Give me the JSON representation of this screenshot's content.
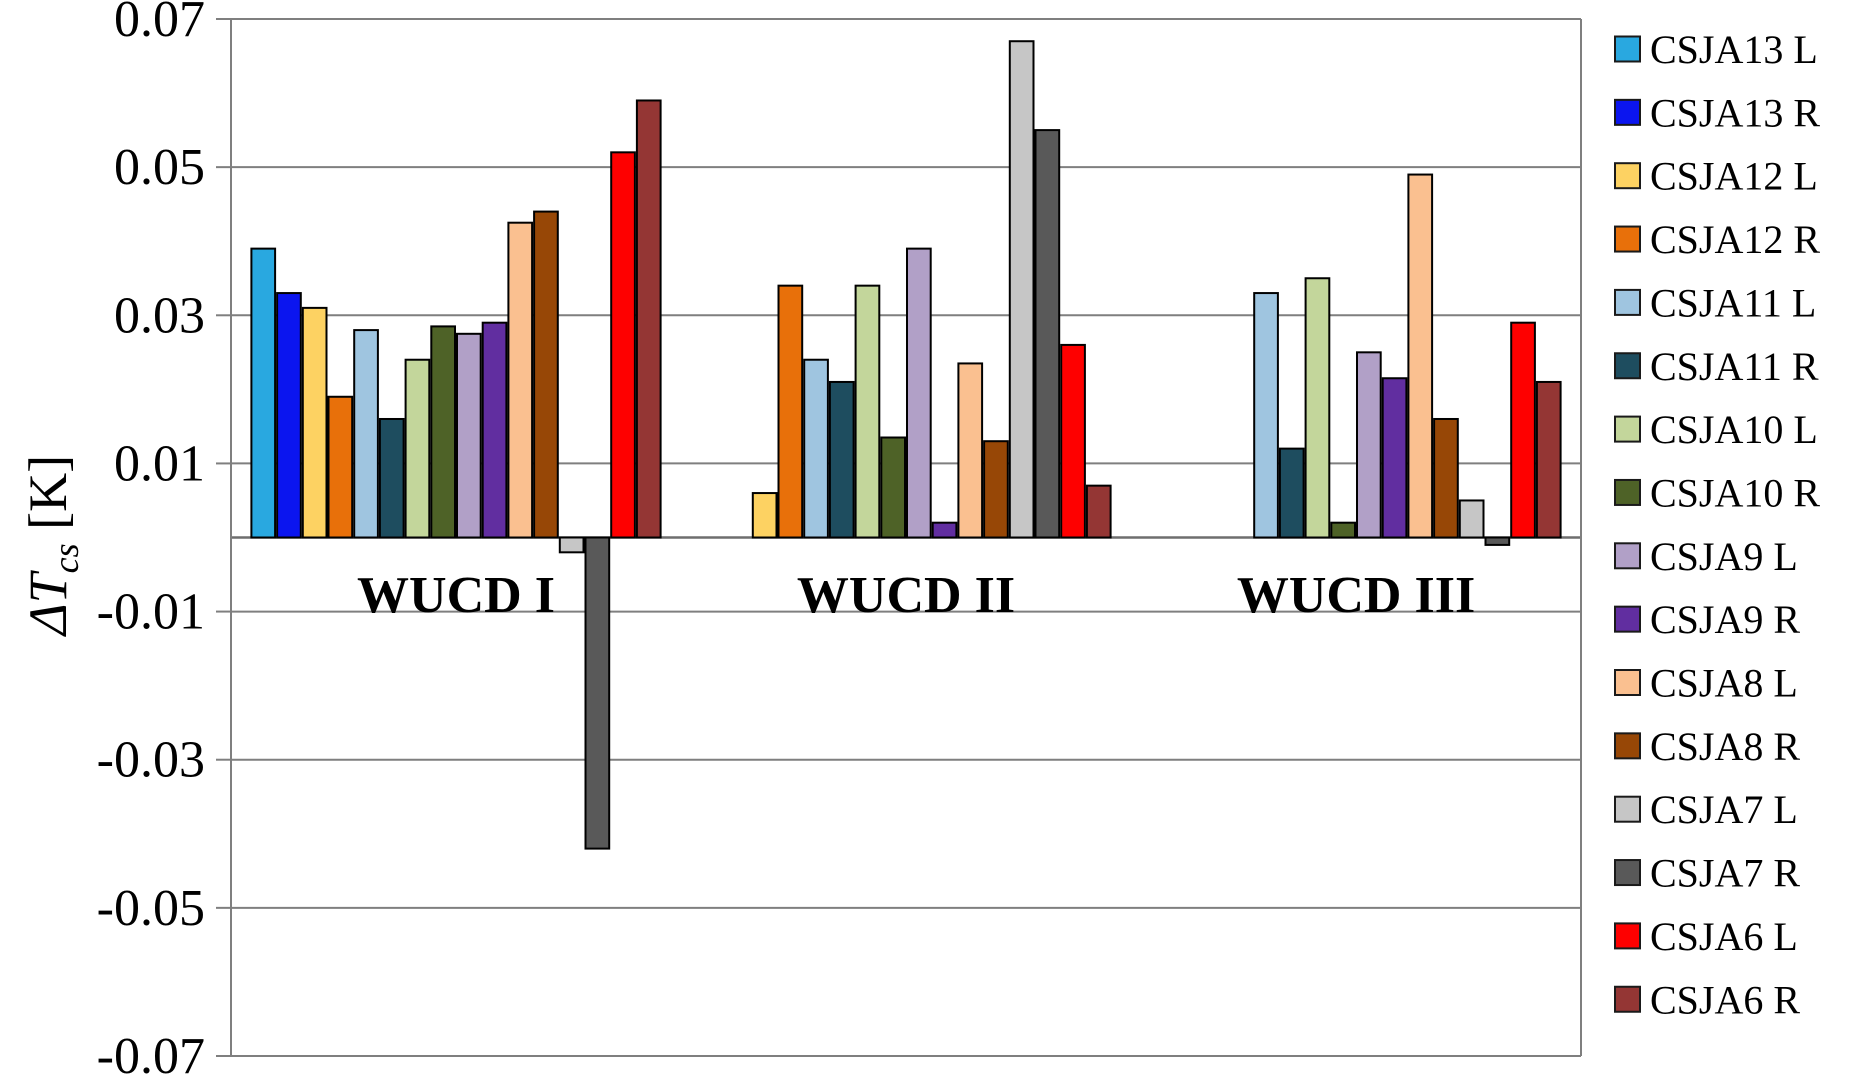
{
  "y_axis": {
    "title_sym": "ΔT",
    "title_sub": "cs",
    "title_unit": " [K]",
    "tick_values": [
      0.07,
      0.05,
      0.03,
      0.01,
      -0.01,
      -0.03,
      -0.05,
      -0.07
    ],
    "tick_labels": [
      "0.07",
      "0.05",
      "0.03",
      "0.01",
      "-0.01",
      "-0.03",
      "-0.05",
      "-0.07"
    ]
  },
  "chart_data": {
    "type": "bar",
    "title": "",
    "xlabel": "",
    "ylabel": "ΔTcs [K]",
    "ylim": [
      -0.07,
      0.07
    ],
    "grid": true,
    "legend_position": "right",
    "categories": [
      "WUCD I",
      "WUCD II",
      "WUCD III"
    ],
    "series": [
      {
        "name": "CSJA13 L",
        "color": "#29A8E0",
        "values": [
          0.039,
          null,
          null
        ]
      },
      {
        "name": "CSJA13 R",
        "color": "#0B15EF",
        "values": [
          0.033,
          null,
          null
        ]
      },
      {
        "name": "CSJA12 L",
        "color": "#FDD262",
        "values": [
          0.031,
          0.006,
          null
        ]
      },
      {
        "name": "CSJA12 R",
        "color": "#E8700A",
        "values": [
          0.019,
          0.034,
          null
        ]
      },
      {
        "name": "CSJA11 L",
        "color": "#9FC5E0",
        "values": [
          0.028,
          0.024,
          0.033
        ]
      },
      {
        "name": "CSJA11 R",
        "color": "#1E4D5F",
        "values": [
          0.016,
          0.021,
          0.012
        ]
      },
      {
        "name": "CSJA10 L",
        "color": "#C3D69B",
        "values": [
          0.024,
          0.034,
          0.035
        ]
      },
      {
        "name": "CSJA10 R",
        "color": "#4E6227",
        "values": [
          0.0285,
          0.0135,
          0.002
        ]
      },
      {
        "name": "CSJA9 L",
        "color": "#B1A0C7",
        "values": [
          0.0275,
          0.039,
          0.025
        ]
      },
      {
        "name": "CSJA9 R",
        "color": "#612EA0",
        "values": [
          0.029,
          0.002,
          0.0215
        ]
      },
      {
        "name": "CSJA8 L",
        "color": "#FAC090",
        "values": [
          0.0425,
          0.0235,
          0.049
        ]
      },
      {
        "name": "CSJA8 R",
        "color": "#974706",
        "values": [
          0.044,
          0.013,
          0.016
        ]
      },
      {
        "name": "CSJA7 L",
        "color": "#C6C6C6",
        "values": [
          -0.002,
          0.067,
          0.005
        ]
      },
      {
        "name": "CSJA7 R",
        "color": "#595959",
        "values": [
          -0.042,
          0.055,
          -0.001
        ]
      },
      {
        "name": "CSJA6 L",
        "color": "#FE0000",
        "values": [
          0.052,
          0.026,
          0.029
        ]
      },
      {
        "name": "CSJA6 R",
        "color": "#943634",
        "values": [
          0.059,
          0.007,
          0.021
        ]
      }
    ]
  },
  "colors": {
    "gridline": "#7F7F7F",
    "axis_line": "#7F7F7F",
    "zero_line": "#6E6E6E",
    "bar_outline": "#000000",
    "text": "#000000"
  }
}
